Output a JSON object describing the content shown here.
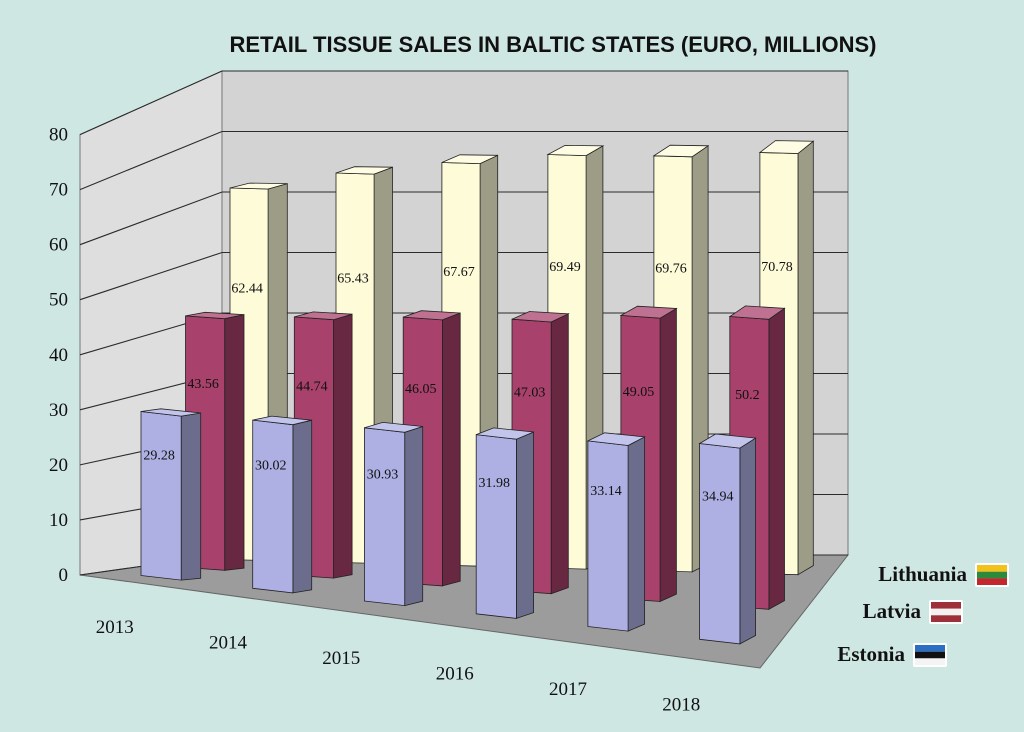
{
  "chart_data": {
    "type": "bar",
    "title": "RETAIL TISSUE SALES IN BALTIC STATES (EURO, MILLIONS)",
    "categories": [
      "2013",
      "2014",
      "2015",
      "2016",
      "2017",
      "2018"
    ],
    "series": [
      {
        "name": "Estonia",
        "values": [
          29.28,
          30.02,
          30.93,
          31.98,
          33.14,
          34.94
        ],
        "color": "#aeb0e4"
      },
      {
        "name": "Latvia",
        "values": [
          43.56,
          44.74,
          46.05,
          47.03,
          49.05,
          50.2
        ],
        "color": "#a8416b"
      },
      {
        "name": "Lithuania",
        "values": [
          62.44,
          65.43,
          67.67,
          69.49,
          69.76,
          70.78
        ],
        "color": "#fdfbd8"
      }
    ],
    "y_ticks": [
      "0",
      "10",
      "20",
      "30",
      "40",
      "50",
      "60",
      "70",
      "80"
    ],
    "ylim": [
      0,
      80
    ],
    "grid": true,
    "legend": {
      "position": "bottom-right",
      "items": [
        "Lithuania",
        "Latvia",
        "Estonia"
      ]
    },
    "flag_icons": [
      "lithuania-flag-icon",
      "latvia-flag-icon",
      "estonia-flag-icon"
    ]
  }
}
